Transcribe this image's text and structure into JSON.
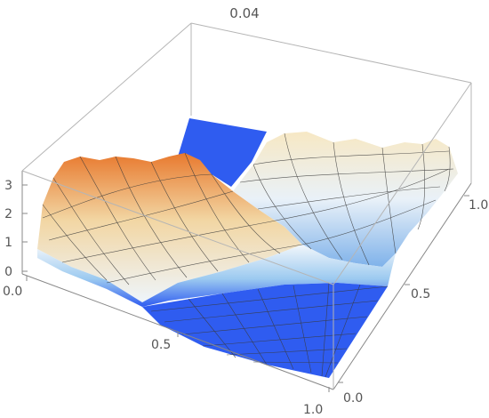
{
  "chart_data": {
    "type": "surface3d",
    "title": "0.04",
    "x_ticks": [
      "0.0",
      "0.5",
      "1.0"
    ],
    "y_ticks": [
      "0.0",
      "0.5",
      "1.0"
    ],
    "z_ticks": [
      "0",
      "1",
      "2",
      "3"
    ],
    "x_range": [
      0,
      1
    ],
    "y_range": [
      0,
      1
    ],
    "z_range": [
      0,
      3.3
    ],
    "flat_region_value": 0,
    "colors": {
      "low": "#2f5cf0",
      "mid": "#e8f1f8",
      "high": "#e07a2a",
      "mesh": "#3a3a3a",
      "box": "#b5b5b5"
    }
  }
}
